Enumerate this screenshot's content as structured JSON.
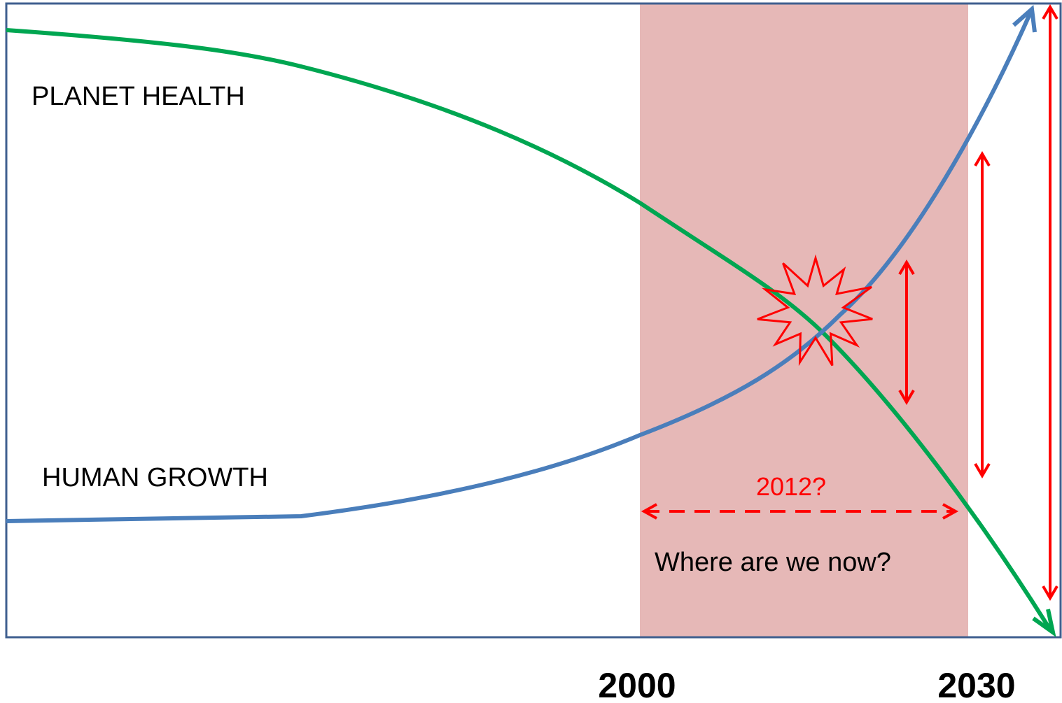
{
  "labels": {
    "planet_health": "PLANET HEALTH",
    "human_growth": "HUMAN GROWTH",
    "marker": "2012?",
    "question": "Where are we now?"
  },
  "axis": {
    "start": "2000",
    "end": "2030"
  }
}
